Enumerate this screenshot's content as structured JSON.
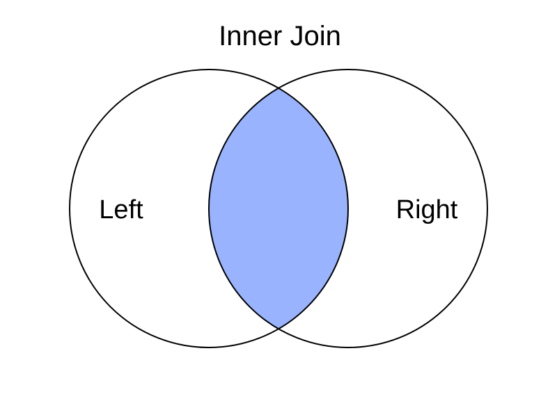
{
  "diagram": {
    "title": "Inner Join",
    "left_label": "Left",
    "right_label": "Right",
    "highlighted_region": "intersection",
    "colors": {
      "highlight": "#99b3ff",
      "outline": "#000000",
      "background": "#ffffff"
    }
  }
}
